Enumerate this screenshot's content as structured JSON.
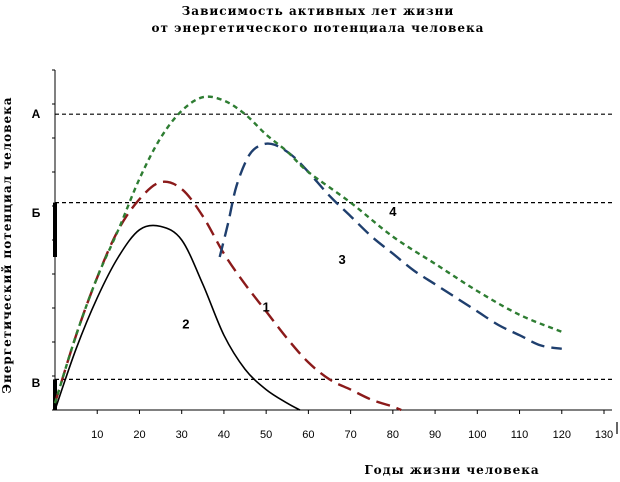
{
  "chart_data": {
    "type": "line",
    "title": "Зависимость  активных  лет жизни",
    "subtitle": "от энергетического   потенциала  человека",
    "xlabel": "Годы    жизни человека",
    "ylabel": "Энергетический потенциал человека",
    "x_ticks": [
      "10",
      "20",
      "30",
      "40",
      "50",
      "60",
      "70",
      "80",
      "90",
      "100",
      "110",
      "120",
      "130"
    ],
    "xlim": [
      0,
      130
    ],
    "ylim": [
      0,
      100
    ],
    "grid": false,
    "levels": [
      {
        "name": "А",
        "value": 87
      },
      {
        "name": "Б",
        "value": 61
      },
      {
        "name": "В",
        "value": 9
      }
    ],
    "band_labels": [
      {
        "name": "А",
        "value": 87
      },
      {
        "name": "Б",
        "value": 58
      },
      {
        "name": "В",
        "value": 8
      }
    ],
    "series": [
      {
        "name": "1",
        "color": "#8b1a1a",
        "style": "long-dash",
        "label_at": [
          50,
          29
        ],
        "x": [
          0,
          5,
          10,
          15,
          20,
          25,
          30,
          35,
          40,
          45,
          50,
          55,
          60,
          65,
          70,
          75,
          80,
          82
        ],
        "y": [
          2,
          22,
          39,
          53,
          62,
          67,
          65,
          57,
          46,
          37,
          29,
          21,
          14,
          9,
          6,
          3,
          1,
          0
        ]
      },
      {
        "name": "2",
        "color": "#000000",
        "style": "solid",
        "label_at": [
          31,
          24
        ],
        "x": [
          0,
          5,
          10,
          15,
          20,
          25,
          30,
          35,
          40,
          45,
          50,
          55,
          58
        ],
        "y": [
          0,
          18,
          33,
          45,
          53,
          54,
          50,
          37,
          22,
          12,
          6,
          2,
          0
        ]
      },
      {
        "name": "3",
        "color": "#1f3f6e",
        "style": "long-dash",
        "label_at": [
          68,
          43
        ],
        "x": [
          39,
          41,
          43,
          46,
          49,
          52,
          56,
          60,
          65,
          70,
          75,
          80,
          85,
          90,
          95,
          100,
          105,
          110,
          115,
          120
        ],
        "y": [
          45,
          55,
          66,
          75,
          78,
          78,
          75,
          70,
          63,
          57,
          51,
          46,
          41,
          37,
          33,
          29,
          25,
          22,
          19,
          18
        ]
      },
      {
        "name": "4",
        "color": "#2e7d32",
        "style": "short-dash",
        "label_at": [
          80,
          57
        ],
        "x": [
          0,
          5,
          10,
          15,
          20,
          25,
          30,
          35,
          40,
          45,
          50,
          55,
          60,
          70,
          80,
          90,
          100,
          110,
          120
        ],
        "y": [
          2,
          22,
          39,
          53,
          68,
          80,
          88,
          92,
          91,
          87,
          81,
          76,
          70,
          61,
          51,
          43,
          35,
          28,
          23
        ]
      }
    ]
  }
}
